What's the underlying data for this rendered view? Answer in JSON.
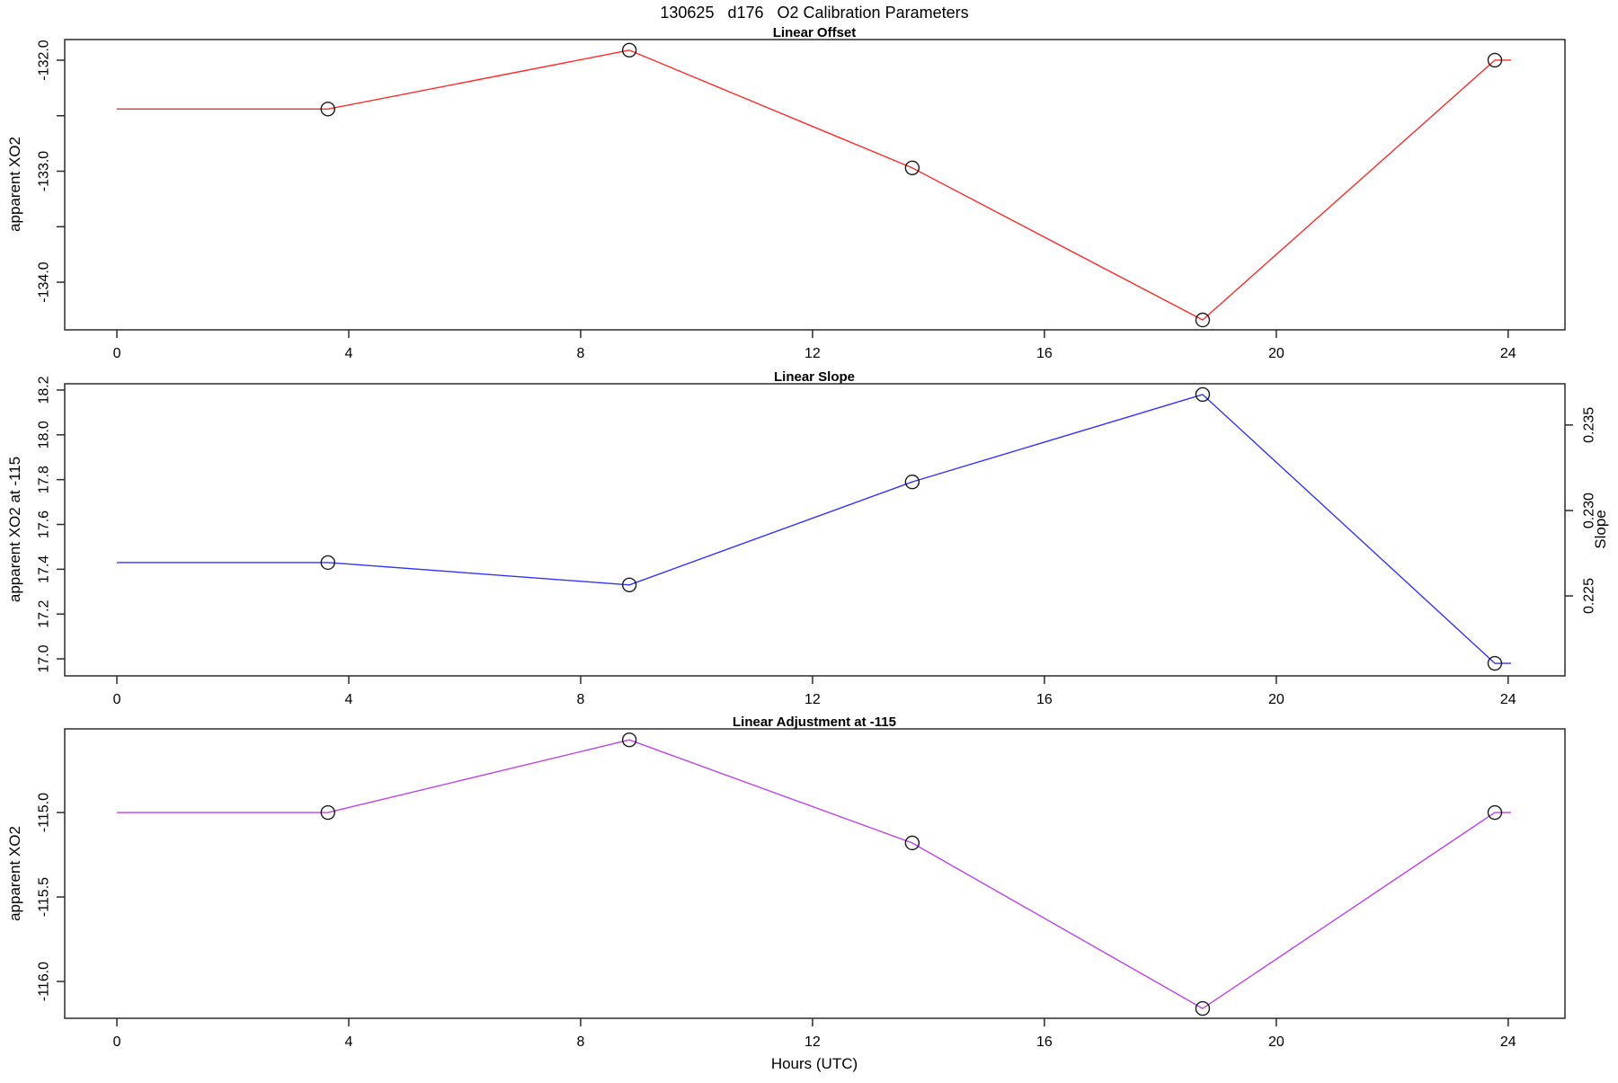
{
  "page": {
    "title": "130625   d176   O2 Calibration Parameters",
    "xlabel": "Hours (UTC)"
  },
  "x_axis": {
    "label": "Hours (UTC)",
    "ticks": [
      0,
      4,
      8,
      12,
      16,
      20,
      24
    ],
    "xlim": [
      -0.9,
      24.98
    ]
  },
  "style": {
    "axis_color": "#2b2b2b",
    "marker_color": "#1a1a1a",
    "marker_style": "open-circle"
  },
  "chart_data": [
    {
      "type": "line",
      "title": "Linear Offset",
      "ylabel": "apparent XO2",
      "color": "#ff2a2a",
      "x": [
        0,
        3.64,
        8.84,
        13.72,
        18.73,
        23.77,
        24.05
      ],
      "y": [
        -132.44,
        -132.44,
        -131.91,
        -132.97,
        -134.34,
        -132.0,
        -132.0
      ],
      "markers": [
        false,
        true,
        true,
        true,
        true,
        true,
        false
      ],
      "ylim": [
        -134.429,
        -131.814
      ],
      "yticks": [
        {
          "v": -132.0,
          "label": "-132.0"
        },
        {
          "v": -132.5,
          "label": ""
        },
        {
          "v": -133.0,
          "label": "-133.0"
        },
        {
          "v": -133.5,
          "label": ""
        },
        {
          "v": -134.0,
          "label": "-134.0"
        }
      ],
      "grid": false,
      "legend": "none"
    },
    {
      "type": "line",
      "title": "Linear Slope",
      "ylabel": "apparent XO2 at -115",
      "color": "#3333ff",
      "x": [
        0,
        3.64,
        8.84,
        13.72,
        18.73,
        23.77,
        24.05
      ],
      "y": [
        17.43,
        17.43,
        17.33,
        17.79,
        18.18,
        16.98,
        16.98
      ],
      "markers": [
        false,
        true,
        true,
        true,
        true,
        true,
        false
      ],
      "ylim": [
        16.924,
        18.228
      ],
      "yticks": [
        {
          "v": 18.2,
          "label": "18.2"
        },
        {
          "v": 18.0,
          "label": "18.0"
        },
        {
          "v": 17.8,
          "label": "17.8"
        },
        {
          "v": 17.6,
          "label": "17.6"
        },
        {
          "v": 17.4,
          "label": "17.4"
        },
        {
          "v": 17.2,
          "label": "17.2"
        },
        {
          "v": 17.0,
          "label": "17.0"
        }
      ],
      "right_axis": {
        "label": "Slope",
        "ticks": [
          {
            "label": "0.235",
            "left_equiv": 18.044
          },
          {
            "label": "0.230",
            "left_equiv": 17.662
          },
          {
            "label": "0.225",
            "left_equiv": 17.281
          }
        ]
      },
      "grid": false,
      "legend": "none"
    },
    {
      "type": "line",
      "title": "Linear Adjustment at -115",
      "ylabel": "apparent XO2",
      "color": "#bb44ee",
      "x": [
        0,
        3.64,
        8.84,
        13.72,
        18.73,
        23.77,
        24.05
      ],
      "y": [
        -115.0,
        -115.0,
        -114.57,
        -115.18,
        -116.16,
        -115.0,
        -115.0
      ],
      "markers": [
        false,
        true,
        true,
        true,
        true,
        true,
        false
      ],
      "ylim": [
        -116.218,
        -114.505
      ],
      "yticks": [
        {
          "v": -115.0,
          "label": "-115.0"
        },
        {
          "v": -115.5,
          "label": "-115.5"
        },
        {
          "v": -116.0,
          "label": "-116.0"
        }
      ],
      "grid": false,
      "legend": "none"
    }
  ]
}
